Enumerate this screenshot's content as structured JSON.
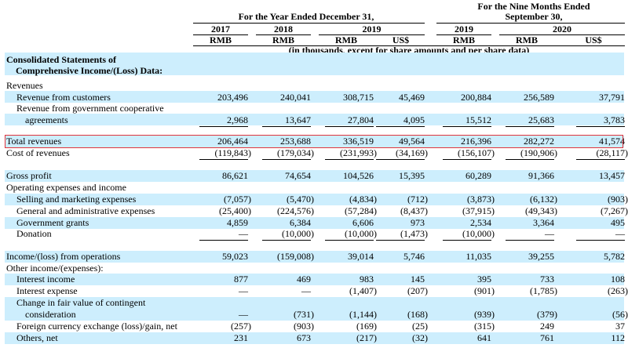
{
  "header": {
    "year_group": "For the Year Ended December 31,",
    "nine_group_line1": "For the Nine Months Ended",
    "nine_group_line2": "September 30,",
    "years": [
      "2017",
      "2018",
      "2019",
      "2019",
      "2020"
    ],
    "currencies": [
      "RMB",
      "RMB",
      "RMB",
      "US$",
      "RMB",
      "RMB",
      "US$"
    ],
    "units_note": "(in thousands, except for share amounts and per share data)"
  },
  "section": {
    "title_line1": "Consolidated Statements of",
    "title_line2": "Comprehensive Income/(Loss) Data:"
  },
  "rows": [
    {
      "label": "Revenues",
      "values": []
    },
    {
      "label": "Revenue from customers",
      "values": [
        "203,496",
        "240,041",
        "308,715",
        "45,469",
        "200,884",
        "256,589",
        "37,791"
      ]
    },
    {
      "label": "Revenue from government cooperative",
      "values": []
    },
    {
      "label": "agreements",
      "values": [
        "2,968",
        "13,647",
        "27,804",
        "4,095",
        "15,512",
        "25,683",
        "3,783"
      ]
    },
    {
      "label": "Total revenues",
      "values": [
        "206,464",
        "253,688",
        "336,519",
        "49,564",
        "216,396",
        "282,272",
        "41,574"
      ]
    },
    {
      "label": "Cost of revenues",
      "values": [
        "(119,843)",
        "(179,034)",
        "(231,993)",
        "(34,169)",
        "(156,107)",
        "(190,906)",
        "(28,117)"
      ]
    },
    {
      "label": "Gross profit",
      "values": [
        "86,621",
        "74,654",
        "104,526",
        "15,395",
        "60,289",
        "91,366",
        "13,457"
      ]
    },
    {
      "label": "Operating expenses and income",
      "values": []
    },
    {
      "label": "Selling and marketing expenses",
      "values": [
        "(7,057)",
        "(5,470)",
        "(4,834)",
        "(712)",
        "(3,873)",
        "(6,132)",
        "(903)"
      ]
    },
    {
      "label": "General and administrative expenses",
      "values": [
        "(25,400)",
        "(224,576)",
        "(57,284)",
        "(8,437)",
        "(37,915)",
        "(49,343)",
        "(7,267)"
      ]
    },
    {
      "label": "Government grants",
      "values": [
        "4,859",
        "6,384",
        "6,606",
        "973",
        "2,534",
        "3,364",
        "495"
      ]
    },
    {
      "label": "Donation",
      "values": [
        "—",
        "(10,000)",
        "(10,000)",
        "(1,473)",
        "(10,000)",
        "—",
        "—"
      ]
    },
    {
      "label": "Income/(loss) from operations",
      "values": [
        "59,023",
        "(159,008)",
        "39,014",
        "5,746",
        "11,035",
        "39,255",
        "5,782"
      ]
    },
    {
      "label": "Other income/(expenses):",
      "values": []
    },
    {
      "label": "Interest income",
      "values": [
        "877",
        "469",
        "983",
        "145",
        "395",
        "733",
        "108"
      ]
    },
    {
      "label": "Interest expense",
      "values": [
        "—",
        "—",
        "(1,407)",
        "(207)",
        "(901)",
        "(1,785)",
        "(263)"
      ]
    },
    {
      "label": "Change in fair value of contingent",
      "values": []
    },
    {
      "label": "consideration",
      "values": [
        "—",
        "(731)",
        "(1,144)",
        "(168)",
        "(939)",
        "(379)",
        "(56)"
      ]
    },
    {
      "label": "Foreign currency exchange (loss)/gain, net",
      "values": [
        "(257)",
        "(903)",
        "(169)",
        "(25)",
        "(315)",
        "249",
        "37"
      ]
    },
    {
      "label": "Others, net",
      "values": [
        "231",
        "673",
        "(217)",
        "(32)",
        "641",
        "761",
        "112"
      ]
    }
  ]
}
